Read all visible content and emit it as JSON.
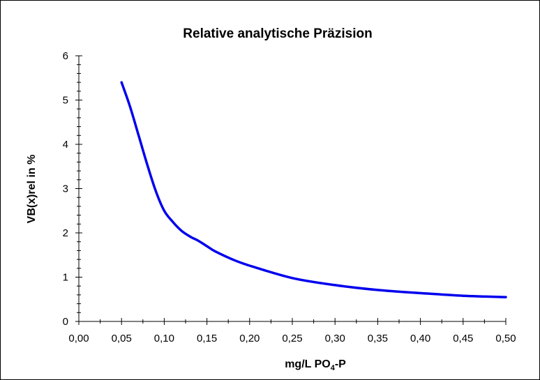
{
  "chart_data": {
    "type": "line",
    "title": "Relative analytische Präzision",
    "xlabel": {
      "base": "mg/L PO",
      "sub": "4",
      "tail": "-P"
    },
    "ylabel": "VB(x)rel in %",
    "xlim": [
      0,
      0.5
    ],
    "ylim": [
      0,
      6
    ],
    "x_ticks": [
      0,
      0.05,
      0.1,
      0.15,
      0.2,
      0.25,
      0.3,
      0.35,
      0.4,
      0.45,
      0.5
    ],
    "x_tick_labels": [
      "0,00",
      "0,05",
      "0,10",
      "0,15",
      "0,20",
      "0,25",
      "0,30",
      "0,35",
      "0,40",
      "0,45",
      "0,50"
    ],
    "y_ticks": [
      0,
      1,
      2,
      3,
      4,
      5,
      6
    ],
    "y_tick_labels": [
      "0",
      "1",
      "2",
      "3",
      "4",
      "5",
      "6"
    ],
    "grid": false,
    "series": [
      {
        "color": "#0000ee",
        "x": [
          0.05,
          0.06,
          0.07,
          0.08,
          0.09,
          0.1,
          0.11,
          0.12,
          0.13,
          0.14,
          0.15,
          0.16,
          0.18,
          0.2,
          0.25,
          0.3,
          0.35,
          0.4,
          0.45,
          0.5
        ],
        "y": [
          5.4,
          4.85,
          4.2,
          3.55,
          2.95,
          2.5,
          2.25,
          2.05,
          1.92,
          1.82,
          1.7,
          1.58,
          1.4,
          1.26,
          0.98,
          0.82,
          0.71,
          0.64,
          0.58,
          0.55
        ]
      }
    ]
  }
}
